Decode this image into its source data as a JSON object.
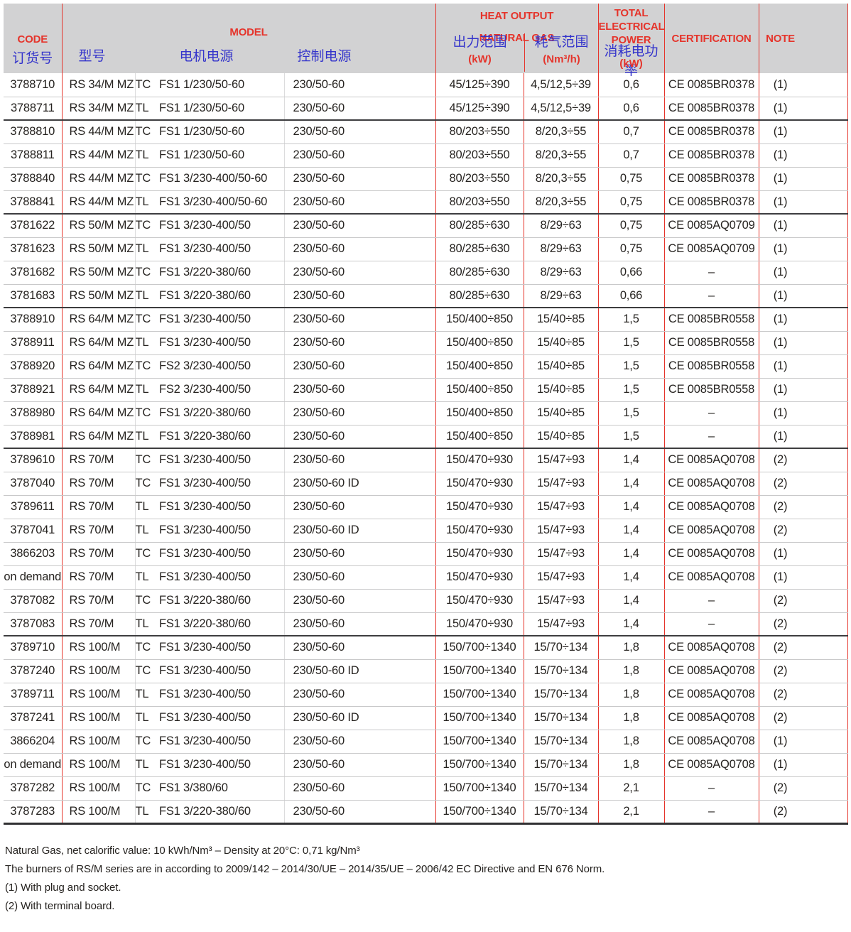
{
  "colors": {
    "accent_red": "#e5342b",
    "accent_blue": "#3434cb",
    "header_bg": "#d2d2d3"
  },
  "header": {
    "code_en": "CODE",
    "code_zh": "订货号",
    "model_en": "MODEL",
    "model_name_zh": "型号",
    "motor_zh": "电机电源",
    "control_zh": "控制电源",
    "heat_line1": "HEAT OUTPUT",
    "heat_line2": "NATURAL GAS",
    "output_zh": "出力范围",
    "output_unit": "(kW)",
    "gas_zh": "耗气范围",
    "gas_unit": "(Nm³/h)",
    "power_lines": [
      "TOTAL",
      "ELECTRICAL",
      "POWER"
    ],
    "power_zh": "消耗电功率",
    "power_unit": "(kW)",
    "certification": "CERTIFICATION",
    "note": "NOTE"
  },
  "rows": [
    {
      "code": "3788710",
      "model": "RS 34/M MZ",
      "tctl": "TC",
      "motor": "FS1 1/230/50-60",
      "control": "230/50-60",
      "output": "45/125÷390",
      "gas": "4,5/12,5÷39",
      "power": "0,6",
      "cert": "CE 0085BR0378",
      "note": "(1)",
      "group_end": false
    },
    {
      "code": "3788711",
      "model": "RS 34/M MZ",
      "tctl": "TL",
      "motor": "FS1 1/230/50-60",
      "control": "230/50-60",
      "output": "45/125÷390",
      "gas": "4,5/12,5÷39",
      "power": "0,6",
      "cert": "CE 0085BR0378",
      "note": "(1)",
      "group_end": true
    },
    {
      "code": "3788810",
      "model": "RS 44/M MZ",
      "tctl": "TC",
      "motor": "FS1 1/230/50-60",
      "control": "230/50-60",
      "output": "80/203÷550",
      "gas": "8/20,3÷55",
      "power": "0,7",
      "cert": "CE 0085BR0378",
      "note": "(1)",
      "group_end": false
    },
    {
      "code": "3788811",
      "model": "RS 44/M MZ",
      "tctl": "TL",
      "motor": "FS1 1/230/50-60",
      "control": "230/50-60",
      "output": "80/203÷550",
      "gas": "8/20,3÷55",
      "power": "0,7",
      "cert": "CE 0085BR0378",
      "note": "(1)",
      "group_end": false
    },
    {
      "code": "3788840",
      "model": "RS 44/M MZ",
      "tctl": "TC",
      "motor": "FS1 3/230-400/50-60",
      "control": "230/50-60",
      "output": "80/203÷550",
      "gas": "8/20,3÷55",
      "power": "0,75",
      "cert": "CE 0085BR0378",
      "note": "(1)",
      "group_end": false
    },
    {
      "code": "3788841",
      "model": "RS 44/M MZ",
      "tctl": "TL",
      "motor": "FS1 3/230-400/50-60",
      "control": "230/50-60",
      "output": "80/203÷550",
      "gas": "8/20,3÷55",
      "power": "0,75",
      "cert": "CE 0085BR0378",
      "note": "(1)",
      "group_end": true
    },
    {
      "code": "3781622",
      "model": "RS 50/M MZ",
      "tctl": "TC",
      "motor": "FS1 3/230-400/50",
      "control": "230/50-60",
      "output": "80/285÷630",
      "gas": "8/29÷63",
      "power": "0,75",
      "cert": "CE 0085AQ0709",
      "note": "(1)",
      "group_end": false
    },
    {
      "code": "3781623",
      "model": "RS 50/M MZ",
      "tctl": "TL",
      "motor": "FS1 3/230-400/50",
      "control": "230/50-60",
      "output": "80/285÷630",
      "gas": "8/29÷63",
      "power": "0,75",
      "cert": "CE 0085AQ0709",
      "note": "(1)",
      "group_end": false
    },
    {
      "code": "3781682",
      "model": "RS 50/M MZ",
      "tctl": "TC",
      "motor": "FS1 3/220-380/60",
      "control": "230/50-60",
      "output": "80/285÷630",
      "gas": "8/29÷63",
      "power": "0,66",
      "cert": "–",
      "note": "(1)",
      "group_end": false
    },
    {
      "code": "3781683",
      "model": "RS 50/M MZ",
      "tctl": "TL",
      "motor": "FS1 3/220-380/60",
      "control": "230/50-60",
      "output": "80/285÷630",
      "gas": "8/29÷63",
      "power": "0,66",
      "cert": "–",
      "note": "(1)",
      "group_end": true
    },
    {
      "code": "3788910",
      "model": "RS 64/M MZ",
      "tctl": "TC",
      "motor": "FS1 3/230-400/50",
      "control": "230/50-60",
      "output": "150/400÷850",
      "gas": "15/40÷85",
      "power": "1,5",
      "cert": "CE 0085BR0558",
      "note": "(1)",
      "group_end": false
    },
    {
      "code": "3788911",
      "model": "RS 64/M MZ",
      "tctl": "TL",
      "motor": "FS1 3/230-400/50",
      "control": "230/50-60",
      "output": "150/400÷850",
      "gas": "15/40÷85",
      "power": "1,5",
      "cert": "CE 0085BR0558",
      "note": "(1)",
      "group_end": false
    },
    {
      "code": "3788920",
      "model": "RS 64/M MZ",
      "tctl": "TC",
      "motor": "FS2 3/230-400/50",
      "control": "230/50-60",
      "output": "150/400÷850",
      "gas": "15/40÷85",
      "power": "1,5",
      "cert": "CE 0085BR0558",
      "note": "(1)",
      "group_end": false
    },
    {
      "code": "3788921",
      "model": "RS 64/M MZ",
      "tctl": "TL",
      "motor": "FS2 3/230-400/50",
      "control": "230/50-60",
      "output": "150/400÷850",
      "gas": "15/40÷85",
      "power": "1,5",
      "cert": "CE 0085BR0558",
      "note": "(1)",
      "group_end": false
    },
    {
      "code": "3788980",
      "model": "RS 64/M MZ",
      "tctl": "TC",
      "motor": "FS1 3/220-380/60",
      "control": "230/50-60",
      "output": "150/400÷850",
      "gas": "15/40÷85",
      "power": "1,5",
      "cert": "–",
      "note": "(1)",
      "group_end": false
    },
    {
      "code": "3788981",
      "model": "RS 64/M MZ",
      "tctl": "TL",
      "motor": "FS1 3/220-380/60",
      "control": "230/50-60",
      "output": "150/400÷850",
      "gas": "15/40÷85",
      "power": "1,5",
      "cert": "–",
      "note": "(1)",
      "group_end": true
    },
    {
      "code": "3789610",
      "model": "RS 70/M",
      "tctl": "TC",
      "motor": "FS1 3/230-400/50",
      "control": "230/50-60",
      "output": "150/470÷930",
      "gas": "15/47÷93",
      "power": "1,4",
      "cert": "CE 0085AQ0708",
      "note": "(2)",
      "group_end": false
    },
    {
      "code": "3787040",
      "model": "RS 70/M",
      "tctl": "TC",
      "motor": "FS1 3/230-400/50",
      "control": "230/50-60 ID",
      "output": "150/470÷930",
      "gas": "15/47÷93",
      "power": "1,4",
      "cert": "CE 0085AQ0708",
      "note": "(2)",
      "group_end": false
    },
    {
      "code": "3789611",
      "model": "RS 70/M",
      "tctl": "TL",
      "motor": "FS1 3/230-400/50",
      "control": "230/50-60",
      "output": "150/470÷930",
      "gas": "15/47÷93",
      "power": "1,4",
      "cert": "CE 0085AQ0708",
      "note": "(2)",
      "group_end": false
    },
    {
      "code": "3787041",
      "model": "RS 70/M",
      "tctl": "TL",
      "motor": "FS1 3/230-400/50",
      "control": "230/50-60 ID",
      "output": "150/470÷930",
      "gas": "15/47÷93",
      "power": "1,4",
      "cert": "CE 0085AQ0708",
      "note": "(2)",
      "group_end": false
    },
    {
      "code": "3866203",
      "model": "RS 70/M",
      "tctl": "TC",
      "motor": "FS1 3/230-400/50",
      "control": "230/50-60",
      "output": "150/470÷930",
      "gas": "15/47÷93",
      "power": "1,4",
      "cert": "CE 0085AQ0708",
      "note": "(1)",
      "group_end": false
    },
    {
      "code": "on demand",
      "model": "RS 70/M",
      "tctl": "TL",
      "motor": "FS1 3/230-400/50",
      "control": "230/50-60",
      "output": "150/470÷930",
      "gas": "15/47÷93",
      "power": "1,4",
      "cert": "CE 0085AQ0708",
      "note": "(1)",
      "group_end": false
    },
    {
      "code": "3787082",
      "model": "RS 70/M",
      "tctl": "TC",
      "motor": "FS1 3/220-380/60",
      "control": "230/50-60",
      "output": "150/470÷930",
      "gas": "15/47÷93",
      "power": "1,4",
      "cert": "–",
      "note": "(2)",
      "group_end": false
    },
    {
      "code": "3787083",
      "model": "RS 70/M",
      "tctl": "TL",
      "motor": "FS1 3/220-380/60",
      "control": "230/50-60",
      "output": "150/470÷930",
      "gas": "15/47÷93",
      "power": "1,4",
      "cert": "–",
      "note": "(2)",
      "group_end": true
    },
    {
      "code": "3789710",
      "model": "RS 100/M",
      "tctl": "TC",
      "motor": "FS1 3/230-400/50",
      "control": "230/50-60",
      "output": "150/700÷1340",
      "gas": "15/70÷134",
      "power": "1,8",
      "cert": "CE 0085AQ0708",
      "note": "(2)",
      "group_end": false
    },
    {
      "code": "3787240",
      "model": "RS 100/M",
      "tctl": "TC",
      "motor": "FS1 3/230-400/50",
      "control": "230/50-60 ID",
      "output": "150/700÷1340",
      "gas": "15/70÷134",
      "power": "1,8",
      "cert": "CE 0085AQ0708",
      "note": "(2)",
      "group_end": false
    },
    {
      "code": "3789711",
      "model": "RS 100/M",
      "tctl": "TL",
      "motor": "FS1 3/230-400/50",
      "control": "230/50-60",
      "output": "150/700÷1340",
      "gas": "15/70÷134",
      "power": "1,8",
      "cert": "CE 0085AQ0708",
      "note": "(2)",
      "group_end": false
    },
    {
      "code": "3787241",
      "model": "RS 100/M",
      "tctl": "TL",
      "motor": "FS1 3/230-400/50",
      "control": "230/50-60 ID",
      "output": "150/700÷1340",
      "gas": "15/70÷134",
      "power": "1,8",
      "cert": "CE 0085AQ0708",
      "note": "(2)",
      "group_end": false
    },
    {
      "code": "3866204",
      "model": "RS 100/M",
      "tctl": "TC",
      "motor": "FS1 3/230-400/50",
      "control": "230/50-60",
      "output": "150/700÷1340",
      "gas": "15/70÷134",
      "power": "1,8",
      "cert": "CE 0085AQ0708",
      "note": "(1)",
      "group_end": false
    },
    {
      "code": "on demand",
      "model": "RS 100/M",
      "tctl": "TL",
      "motor": "FS1 3/230-400/50",
      "control": "230/50-60",
      "output": "150/700÷1340",
      "gas": "15/70÷134",
      "power": "1,8",
      "cert": "CE 0085AQ0708",
      "note": "(1)",
      "group_end": false
    },
    {
      "code": "3787282",
      "model": "RS 100/M",
      "tctl": "TC",
      "motor": "FS1 3/380/60",
      "control": "230/50-60",
      "output": "150/700÷1340",
      "gas": "15/70÷134",
      "power": "2,1",
      "cert": "–",
      "note": "(2)",
      "group_end": false
    },
    {
      "code": "3787283",
      "model": "RS 100/M",
      "tctl": "TL",
      "motor": "FS1 3/220-380/60",
      "control": "230/50-60",
      "output": "150/700÷1340",
      "gas": "15/70÷134",
      "power": "2,1",
      "cert": "–",
      "note": "(2)",
      "group_end": true
    }
  ],
  "footnotes": [
    "Natural Gas, net calorific value: 10 kWh/Nm³ – Density at 20°C: 0,71 kg/Nm³",
    "The burners of RS/M series are in according to 2009/142 – 2014/30/UE – 2014/35/UE – 2006/42 EC Directive and EN 676 Norm.",
    "(1) With plug and socket.",
    "(2) With terminal board."
  ]
}
